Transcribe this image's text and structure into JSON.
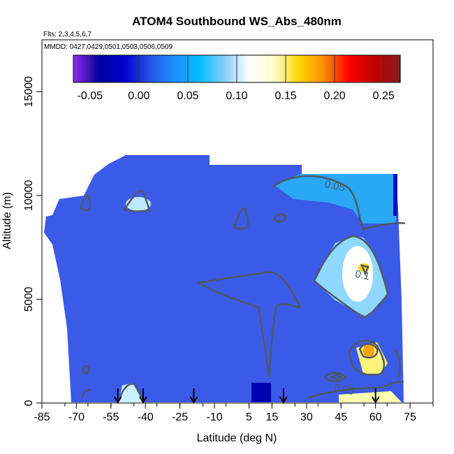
{
  "chart_data": {
    "type": "heatmap",
    "title": "ATOM4 Southbound WS_Abs_480nm",
    "subtitle_flights": "Flts: 2,3,4,5,6,7",
    "subtitle_dates": "MMDD: 0427,0429,0501,0503,0506,0509",
    "xlabel": "Latitude (deg N)",
    "ylabel": "Altitude (m)",
    "xlim": [
      -85,
      85
    ],
    "ylim": [
      0,
      17500
    ],
    "x_ticks": [
      -85,
      -70,
      -55,
      -40,
      -25,
      -10,
      5,
      15,
      30,
      45,
      60,
      75
    ],
    "x_tick_labels": [
      "-85",
      "-70",
      "-55",
      "-40",
      "-25",
      "-10",
      "5",
      "15",
      "30",
      "45",
      "60",
      "75"
    ],
    "y_ticks": [
      0,
      5000,
      10000,
      15000
    ],
    "y_tick_labels": [
      "0",
      "5000",
      "10000",
      "15000"
    ],
    "colorbar": {
      "range": [
        -0.067,
        0.267
      ],
      "ticks": [
        -0.05,
        0.0,
        0.05,
        0.1,
        0.15,
        0.2,
        0.25
      ],
      "tick_labels": [
        "-0.05",
        "0.00",
        "0.05",
        "0.10",
        "0.15",
        "0.20",
        "0.25"
      ],
      "colors": [
        "#8a2be2",
        "#0000a0",
        "#0000cd",
        "#2850e6",
        "#1e90ff",
        "#00bfff",
        "#87cefa",
        "#ffffff",
        "#fffacd",
        "#ffd700",
        "#ff8c00",
        "#ff0000",
        "#c00000",
        "#8b1a1a"
      ]
    },
    "contour_labels": [
      {
        "text": "0.05",
        "lat": 42,
        "alt": 10300
      },
      {
        "text": "0.1",
        "lat": 54,
        "alt": 6000
      },
      {
        "text": "0.05",
        "lat": 46,
        "alt": 500
      }
    ],
    "flight_arrow_latitudes": [
      -52,
      -41,
      -19,
      20,
      60
    ],
    "grid": false,
    "legend": "colorbar-top"
  }
}
